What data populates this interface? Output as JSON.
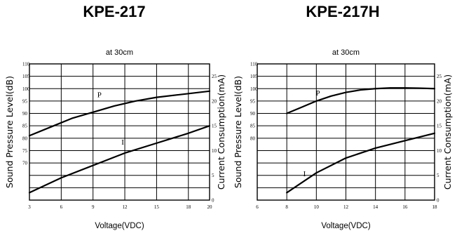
{
  "chart_data": [
    {
      "type": "line",
      "title": "KPE-217",
      "subtitle": "at 30cm",
      "xlabel": "Voltage(VDC)",
      "ylabel_left": "Sound Pressure Level(dB)",
      "ylabel_right": "Current Consumption(mA)",
      "x_ticks": [
        "3",
        "6",
        "9",
        "12",
        "15",
        "18",
        "20"
      ],
      "x_tick_values": [
        3,
        6,
        9,
        12,
        15,
        18,
        20
      ],
      "xlim": [
        3,
        20
      ],
      "left_ticks": [
        "110",
        "105",
        "100",
        "95",
        "90",
        "85",
        "80",
        "75",
        "70"
      ],
      "left_tick_values": [
        110,
        105,
        100,
        95,
        90,
        85,
        80,
        75,
        70
      ],
      "left_ylim": [
        55,
        110
      ],
      "right_ticks": [
        "25",
        "20",
        "15",
        "10",
        "5",
        "0"
      ],
      "right_tick_values": [
        25,
        20,
        15,
        10,
        5,
        0
      ],
      "right_ylim": [
        0,
        27.5
      ],
      "grid": true,
      "series": [
        {
          "name": "P",
          "axis": "left",
          "x": [
            3,
            5,
            7,
            9,
            11,
            13,
            15,
            17,
            20
          ],
          "y": [
            81,
            84.5,
            88,
            90.5,
            93,
            95,
            96.5,
            97.5,
            99
          ]
        },
        {
          "name": "I",
          "axis": "right",
          "x": [
            3,
            6,
            9,
            12,
            15,
            18,
            20
          ],
          "y": [
            1.5,
            4.5,
            7,
            9.5,
            11.5,
            13.5,
            15
          ]
        }
      ]
    },
    {
      "type": "line",
      "title": "KPE-217H",
      "subtitle": "at 30cm",
      "xlabel": "Voltage(VDC)",
      "ylabel_left": "Sound Pressure Level(dB)",
      "ylabel_right": "Current Consumption(mA)",
      "x_ticks": [
        "6",
        "8",
        "10",
        "12",
        "14",
        "16",
        "18"
      ],
      "x_tick_values": [
        6,
        8,
        10,
        12,
        14,
        16,
        18
      ],
      "xlim": [
        6,
        18
      ],
      "left_ticks": [
        "110",
        "105",
        "100",
        "95",
        "90",
        "85",
        "80"
      ],
      "left_tick_values": [
        110,
        105,
        100,
        95,
        90,
        85,
        80
      ],
      "left_ylim": [
        55,
        110
      ],
      "right_ticks": [
        "25",
        "20",
        "15",
        "10",
        "5",
        "0"
      ],
      "right_tick_values": [
        25,
        20,
        15,
        10,
        5,
        0
      ],
      "right_ylim": [
        0,
        27.5
      ],
      "grid": true,
      "series": [
        {
          "name": "P",
          "axis": "left",
          "x": [
            8,
            9,
            10,
            11,
            12,
            13,
            14,
            15,
            16,
            17,
            18
          ],
          "y": [
            90,
            92.5,
            95,
            97,
            98.5,
            99.5,
            100,
            100.3,
            100.3,
            100.2,
            100
          ]
        },
        {
          "name": "I",
          "axis": "right",
          "x": [
            8,
            10,
            12,
            14,
            16,
            18
          ],
          "y": [
            1.5,
            5.5,
            8.5,
            10.5,
            12,
            13.5
          ]
        }
      ]
    }
  ]
}
